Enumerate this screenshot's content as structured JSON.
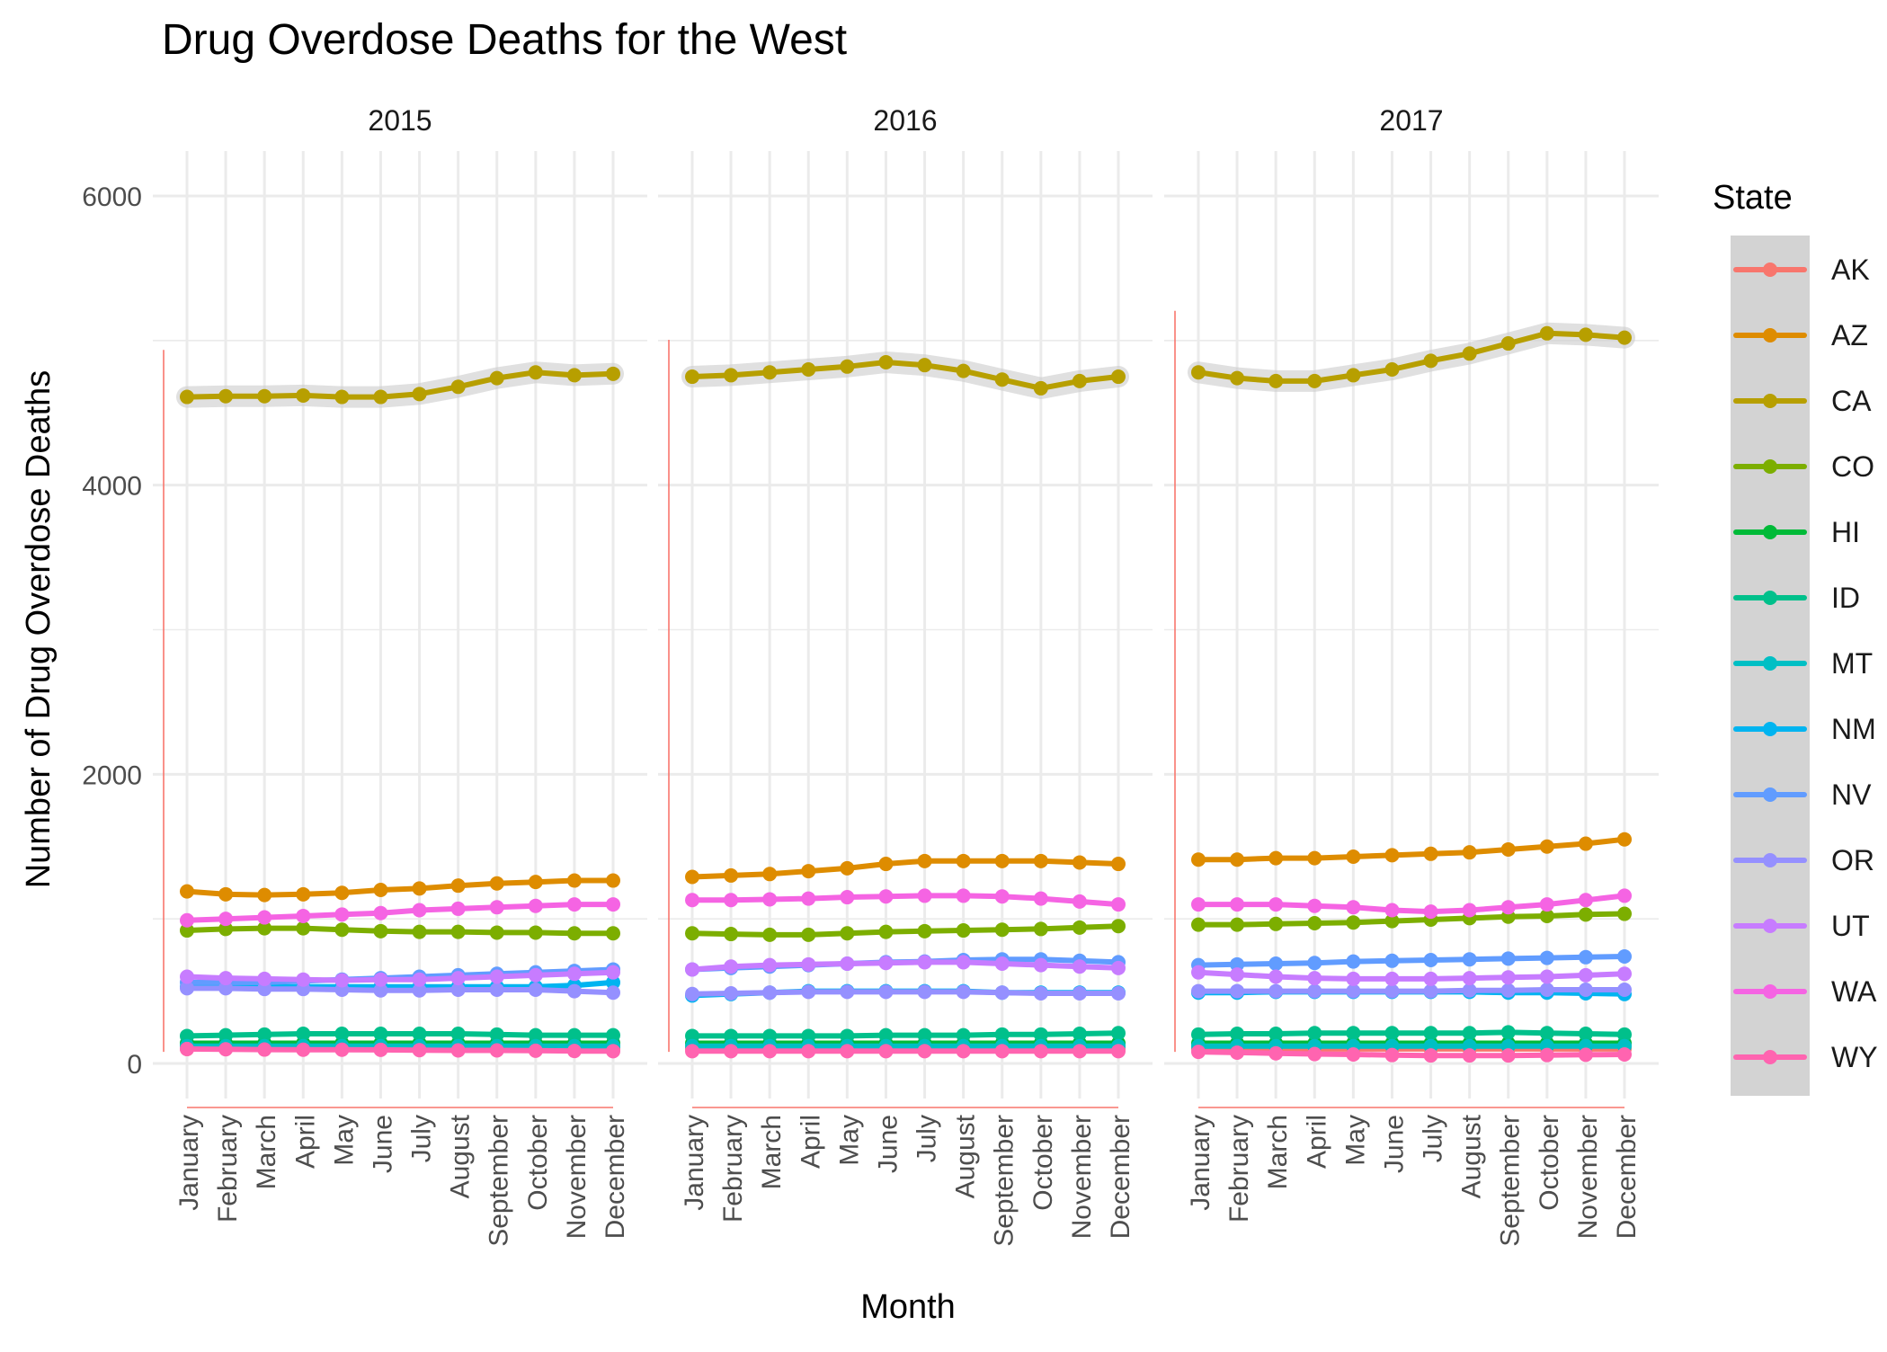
{
  "chart_data": {
    "type": "line",
    "title": "Drug Overdose Deaths for the West",
    "xlabel": "Month",
    "ylabel": "Number of Drug Overdose Deaths",
    "ylim": [
      0,
      6000
    ],
    "y_ticks": [
      0,
      2000,
      4000,
      6000
    ],
    "grid": true,
    "legend": {
      "title": "State",
      "placement": "right"
    },
    "months": [
      "January",
      "February",
      "March",
      "April",
      "May",
      "June",
      "July",
      "August",
      "September",
      "October",
      "November",
      "December"
    ],
    "panels": [
      {
        "label": "2015",
        "series": [
          {
            "name": "AK",
            "color": "#F8766D",
            "values": [
              100,
              100,
              100,
              100,
              100,
              100,
              100,
              100,
              100,
              100,
              100,
              100
            ]
          },
          {
            "name": "AZ",
            "color": "#DE8C00",
            "values": [
              1190,
              1170,
              1165,
              1170,
              1180,
              1200,
              1210,
              1230,
              1245,
              1255,
              1265,
              1265
            ]
          },
          {
            "name": "CA",
            "color": "#B79F00",
            "values": [
              4610,
              4615,
              4615,
              4620,
              4610,
              4610,
              4630,
              4680,
              4740,
              4780,
              4760,
              4770
            ]
          },
          {
            "name": "CO",
            "color": "#7CAE00",
            "values": [
              920,
              930,
              935,
              935,
              925,
              915,
              910,
              910,
              905,
              905,
              900,
              900
            ]
          },
          {
            "name": "HI",
            "color": "#00BA38",
            "values": [
              140,
              140,
              140,
              140,
              140,
              140,
              140,
              140,
              140,
              140,
              140,
              140
            ]
          },
          {
            "name": "ID",
            "color": "#00C08B",
            "values": [
              190,
              195,
              200,
              205,
              205,
              205,
              205,
              205,
              200,
              195,
              195,
              195
            ]
          },
          {
            "name": "MT",
            "color": "#00BFC4",
            "values": [
              120,
              120,
              120,
              120,
              120,
              120,
              120,
              120,
              120,
              120,
              120,
              120
            ]
          },
          {
            "name": "NM",
            "color": "#00B4F0",
            "values": [
              530,
              530,
              530,
              530,
              530,
              530,
              530,
              530,
              530,
              530,
              540,
              560
            ]
          },
          {
            "name": "NV",
            "color": "#619CFF",
            "values": [
              560,
              560,
              560,
              570,
              580,
              590,
              600,
              610,
              620,
              630,
              640,
              650
            ]
          },
          {
            "name": "OR",
            "color": "#9590FF",
            "values": [
              520,
              520,
              515,
              515,
              510,
              505,
              505,
              510,
              510,
              510,
              500,
              490
            ]
          },
          {
            "name": "UT",
            "color": "#C77CFF",
            "values": [
              600,
              590,
              585,
              580,
              575,
              580,
              580,
              590,
              600,
              610,
              620,
              630
            ]
          },
          {
            "name": "WA",
            "color": "#F564E3",
            "values": [
              990,
              1000,
              1010,
              1020,
              1030,
              1040,
              1060,
              1070,
              1080,
              1090,
              1100,
              1100
            ]
          },
          {
            "name": "WY",
            "color": "#FF64B0",
            "values": [
              100,
              98,
              96,
              95,
              95,
              94,
              92,
              90,
              90,
              88,
              86,
              85
            ]
          }
        ]
      },
      {
        "label": "2016",
        "series": [
          {
            "name": "AK",
            "color": "#F8766D",
            "values": [
              100,
              100,
              100,
              100,
              100,
              100,
              100,
              100,
              100,
              100,
              100,
              100
            ]
          },
          {
            "name": "AZ",
            "color": "#DE8C00",
            "values": [
              1290,
              1300,
              1310,
              1330,
              1350,
              1380,
              1400,
              1400,
              1400,
              1400,
              1390,
              1380
            ]
          },
          {
            "name": "CA",
            "color": "#B79F00",
            "values": [
              4750,
              4760,
              4780,
              4800,
              4820,
              4850,
              4830,
              4790,
              4730,
              4670,
              4720,
              4750
            ]
          },
          {
            "name": "CO",
            "color": "#7CAE00",
            "values": [
              900,
              895,
              890,
              890,
              900,
              910,
              915,
              920,
              925,
              930,
              940,
              950
            ]
          },
          {
            "name": "HI",
            "color": "#00BA38",
            "values": [
              140,
              140,
              140,
              140,
              140,
              140,
              140,
              140,
              140,
              140,
              140,
              140
            ]
          },
          {
            "name": "ID",
            "color": "#00C08B",
            "values": [
              190,
              190,
              190,
              190,
              190,
              195,
              195,
              195,
              200,
              200,
              205,
              210
            ]
          },
          {
            "name": "MT",
            "color": "#00BFC4",
            "values": [
              120,
              120,
              120,
              120,
              120,
              120,
              120,
              120,
              120,
              120,
              120,
              120
            ]
          },
          {
            "name": "NM",
            "color": "#00B4F0",
            "values": [
              470,
              480,
              490,
              500,
              500,
              500,
              500,
              500,
              490,
              490,
              490,
              490
            ]
          },
          {
            "name": "NV",
            "color": "#619CFF",
            "values": [
              650,
              660,
              670,
              680,
              690,
              700,
              705,
              715,
              720,
              720,
              710,
              700
            ]
          },
          {
            "name": "OR",
            "color": "#9590FF",
            "values": [
              480,
              485,
              490,
              495,
              495,
              495,
              495,
              495,
              490,
              485,
              485,
              485
            ]
          },
          {
            "name": "UT",
            "color": "#C77CFF",
            "values": [
              650,
              670,
              680,
              685,
              690,
              695,
              700,
              700,
              690,
              680,
              670,
              660
            ]
          },
          {
            "name": "WA",
            "color": "#F564E3",
            "values": [
              1130,
              1130,
              1135,
              1140,
              1150,
              1155,
              1160,
              1160,
              1155,
              1140,
              1120,
              1100
            ]
          },
          {
            "name": "WY",
            "color": "#FF64B0",
            "values": [
              85,
              85,
              85,
              85,
              85,
              85,
              85,
              85,
              85,
              85,
              85,
              85
            ]
          }
        ]
      },
      {
        "label": "2017",
        "series": [
          {
            "name": "AK",
            "color": "#F8766D",
            "values": [
              100,
              100,
              100,
              100,
              100,
              100,
              100,
              100,
              100,
              100,
              100,
              100
            ]
          },
          {
            "name": "AZ",
            "color": "#DE8C00",
            "values": [
              1410,
              1410,
              1420,
              1420,
              1430,
              1440,
              1450,
              1460,
              1480,
              1500,
              1520,
              1550
            ]
          },
          {
            "name": "CA",
            "color": "#B79F00",
            "values": [
              4780,
              4740,
              4720,
              4720,
              4760,
              4800,
              4860,
              4910,
              4980,
              5050,
              5040,
              5020
            ]
          },
          {
            "name": "CO",
            "color": "#7CAE00",
            "values": [
              960,
              960,
              965,
              970,
              975,
              985,
              995,
              1005,
              1015,
              1020,
              1030,
              1035
            ]
          },
          {
            "name": "HI",
            "color": "#00BA38",
            "values": [
              140,
              140,
              140,
              140,
              140,
              140,
              140,
              140,
              140,
              140,
              140,
              140
            ]
          },
          {
            "name": "ID",
            "color": "#00C08B",
            "values": [
              200,
              205,
              205,
              210,
              210,
              210,
              210,
              210,
              215,
              210,
              205,
              200
            ]
          },
          {
            "name": "MT",
            "color": "#00BFC4",
            "values": [
              120,
              120,
              120,
              120,
              120,
              120,
              120,
              120,
              120,
              120,
              120,
              120
            ]
          },
          {
            "name": "NM",
            "color": "#00B4F0",
            "values": [
              490,
              490,
              495,
              495,
              495,
              495,
              495,
              495,
              490,
              490,
              485,
              480
            ]
          },
          {
            "name": "NV",
            "color": "#619CFF",
            "values": [
              680,
              685,
              690,
              695,
              705,
              710,
              715,
              720,
              725,
              730,
              735,
              740
            ]
          },
          {
            "name": "OR",
            "color": "#9590FF",
            "values": [
              500,
              500,
              500,
              500,
              500,
              500,
              500,
              505,
              505,
              510,
              510,
              510
            ]
          },
          {
            "name": "UT",
            "color": "#C77CFF",
            "values": [
              630,
              615,
              600,
              590,
              585,
              585,
              585,
              590,
              595,
              600,
              610,
              620
            ]
          },
          {
            "name": "WA",
            "color": "#F564E3",
            "values": [
              1100,
              1100,
              1100,
              1090,
              1080,
              1060,
              1050,
              1060,
              1080,
              1100,
              1130,
              1160
            ]
          },
          {
            "name": "WY",
            "color": "#FF64B0",
            "values": [
              80,
              75,
              70,
              65,
              62,
              58,
              55,
              55,
              55,
              58,
              60,
              62
            ]
          }
        ]
      }
    ]
  }
}
